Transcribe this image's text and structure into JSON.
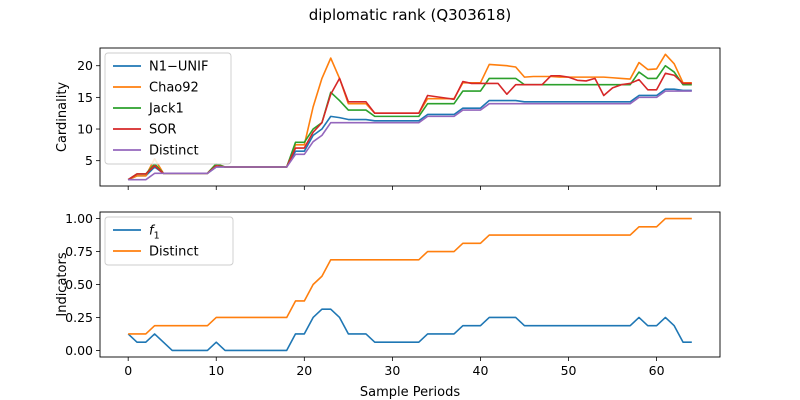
{
  "figure_title": "diplomatic rank (Q303618)",
  "chart_data": [
    {
      "type": "line",
      "title": "",
      "xlabel": "",
      "ylabel": "Cardinality",
      "xlim": [
        -3.2,
        67.2
      ],
      "ylim": [
        1.0,
        22.8
      ],
      "xticks": [
        0,
        10,
        20,
        30,
        40,
        50,
        60
      ],
      "yticks": [
        5,
        10,
        15,
        20
      ],
      "show_xtick_labels": false,
      "legend_position": "upper left",
      "grid": false,
      "x": [
        0,
        1,
        2,
        3,
        4,
        5,
        6,
        7,
        8,
        9,
        10,
        11,
        12,
        13,
        14,
        15,
        16,
        17,
        18,
        19,
        20,
        21,
        22,
        23,
        24,
        25,
        26,
        27,
        28,
        29,
        30,
        31,
        32,
        33,
        34,
        35,
        36,
        37,
        38,
        39,
        40,
        41,
        42,
        43,
        44,
        45,
        46,
        47,
        48,
        49,
        50,
        51,
        52,
        53,
        54,
        55,
        56,
        57,
        58,
        59,
        60,
        61,
        62,
        63,
        64
      ],
      "series": [
        {
          "name": "N1−UNIF",
          "color": "#1f77b4",
          "values": [
            2,
            2.6,
            2.6,
            4,
            3,
            3,
            3,
            3,
            3,
            3,
            4,
            4,
            4,
            4,
            4,
            4,
            4,
            4,
            4,
            6.5,
            6.5,
            9,
            10,
            12,
            11.8,
            11.5,
            11.5,
            11.5,
            11.3,
            11.3,
            11.3,
            11.3,
            11.3,
            11.3,
            12.3,
            12.3,
            12.3,
            12.3,
            13.3,
            13.3,
            13.3,
            14.5,
            14.5,
            14.5,
            14.5,
            14.3,
            14.3,
            14.3,
            14.3,
            14.3,
            14.3,
            14.3,
            14.3,
            14.3,
            14.3,
            14.3,
            14.3,
            14.3,
            15.3,
            15.3,
            15.3,
            16.3,
            16.3,
            16.1,
            16.1
          ]
        },
        {
          "name": "Chao92",
          "color": "#ff7f0e",
          "values": [
            2,
            2.6,
            2.6,
            5.3,
            3,
            3,
            3,
            3,
            3,
            3,
            4.5,
            4,
            4,
            4,
            4,
            4,
            4,
            4,
            4,
            7.5,
            7.5,
            13.5,
            18,
            21.2,
            18,
            14,
            14,
            14,
            12.5,
            12.5,
            12.5,
            12.5,
            12.5,
            12.5,
            14.8,
            14.8,
            14.8,
            14.8,
            17.3,
            17.3,
            17.3,
            20.2,
            20.1,
            20,
            19.8,
            18.2,
            18.3,
            18.3,
            18.3,
            18.2,
            18.2,
            18.2,
            18.2,
            18.2,
            18.2,
            18.1,
            18,
            17.9,
            20.5,
            19.4,
            19.5,
            21.8,
            20.3,
            17.3,
            17.3
          ]
        },
        {
          "name": "Jack1",
          "color": "#2ca02c",
          "values": [
            2,
            2.9,
            2.9,
            4.5,
            3,
            3,
            3,
            3,
            3,
            3,
            4.5,
            4,
            4,
            4,
            4,
            4,
            4,
            4,
            4,
            7.9,
            7.9,
            10,
            11,
            15.8,
            14.5,
            13,
            13,
            13,
            12,
            12,
            12,
            12,
            12,
            12,
            14,
            14,
            14,
            14,
            16,
            16,
            16,
            18,
            18,
            18,
            18,
            17,
            17,
            17,
            17,
            17,
            17,
            17,
            17,
            17,
            17,
            17,
            17,
            17,
            19,
            18,
            18,
            20,
            19,
            17,
            17
          ]
        },
        {
          "name": "SOR",
          "color": "#d62728",
          "values": [
            2,
            2.9,
            2.9,
            4.2,
            3,
            3,
            3,
            3,
            3,
            3,
            4.2,
            4,
            4,
            4,
            4,
            4,
            4,
            4,
            4,
            7,
            7,
            9.5,
            11,
            15.5,
            18,
            14.3,
            14.3,
            14.3,
            12.5,
            12.5,
            12.5,
            12.5,
            12.5,
            12.5,
            15.3,
            15.1,
            14.9,
            14.7,
            17.5,
            17.2,
            17.2,
            17.2,
            17.2,
            15.5,
            17,
            17,
            17,
            17,
            18.4,
            18.4,
            18.2,
            17.7,
            17.6,
            18,
            15.3,
            16.5,
            17,
            17.2,
            17.8,
            16.2,
            16.2,
            18.8,
            18.5,
            17.2,
            17.2
          ]
        },
        {
          "name": "Distinct",
          "color": "#9467bd",
          "values": [
            2,
            2,
            2,
            3,
            3,
            3,
            3,
            3,
            3,
            3,
            4,
            4,
            4,
            4,
            4,
            4,
            4,
            4,
            4,
            6,
            6,
            8,
            9,
            11,
            11,
            11,
            11,
            11,
            11,
            11,
            11,
            11,
            11,
            11,
            12,
            12,
            12,
            12,
            13,
            13,
            13,
            14,
            14,
            14,
            14,
            14,
            14,
            14,
            14,
            14,
            14,
            14,
            14,
            14,
            14,
            14,
            14,
            14,
            15,
            15,
            15,
            16,
            16,
            16,
            16
          ]
        }
      ]
    },
    {
      "type": "line",
      "title": "",
      "xlabel": "Sample Periods",
      "ylabel": "Indicators",
      "xlim": [
        -3.2,
        67.2
      ],
      "ylim": [
        -0.05,
        1.05
      ],
      "xticks": [
        0,
        10,
        20,
        30,
        40,
        50,
        60
      ],
      "yticks": [
        0.0,
        0.25,
        0.5,
        0.75,
        1.0
      ],
      "ytick_labels": [
        "0.00",
        "0.25",
        "0.50",
        "0.75",
        "1.00"
      ],
      "show_xtick_labels": true,
      "legend_position": "upper left",
      "grid": false,
      "x": [
        0,
        1,
        2,
        3,
        4,
        5,
        6,
        7,
        8,
        9,
        10,
        11,
        12,
        13,
        14,
        15,
        16,
        17,
        18,
        19,
        20,
        21,
        22,
        23,
        24,
        25,
        26,
        27,
        28,
        29,
        30,
        31,
        32,
        33,
        34,
        35,
        36,
        37,
        38,
        39,
        40,
        41,
        42,
        43,
        44,
        45,
        46,
        47,
        48,
        49,
        50,
        51,
        52,
        53,
        54,
        55,
        56,
        57,
        58,
        59,
        60,
        61,
        62,
        63,
        64
      ],
      "series": [
        {
          "name": "f1",
          "name_main": "f",
          "name_sub": "1",
          "color": "#1f77b4",
          "values": [
            0.125,
            0.0625,
            0.0625,
            0.125,
            0.0625,
            0,
            0,
            0,
            0,
            0,
            0.0625,
            0,
            0,
            0,
            0,
            0,
            0,
            0,
            0,
            0.125,
            0.125,
            0.25,
            0.3125,
            0.3125,
            0.25,
            0.125,
            0.125,
            0.125,
            0.0625,
            0.0625,
            0.0625,
            0.0625,
            0.0625,
            0.0625,
            0.125,
            0.125,
            0.125,
            0.125,
            0.1875,
            0.1875,
            0.1875,
            0.25,
            0.25,
            0.25,
            0.25,
            0.1875,
            0.1875,
            0.1875,
            0.1875,
            0.1875,
            0.1875,
            0.1875,
            0.1875,
            0.1875,
            0.1875,
            0.1875,
            0.1875,
            0.1875,
            0.25,
            0.1875,
            0.1875,
            0.25,
            0.1875,
            0.0625,
            0.0625
          ]
        },
        {
          "name": "Distinct",
          "color": "#ff7f0e",
          "values": [
            0.125,
            0.125,
            0.125,
            0.1875,
            0.1875,
            0.1875,
            0.1875,
            0.1875,
            0.1875,
            0.1875,
            0.25,
            0.25,
            0.25,
            0.25,
            0.25,
            0.25,
            0.25,
            0.25,
            0.25,
            0.375,
            0.375,
            0.5,
            0.5625,
            0.6875,
            0.6875,
            0.6875,
            0.6875,
            0.6875,
            0.6875,
            0.6875,
            0.6875,
            0.6875,
            0.6875,
            0.6875,
            0.75,
            0.75,
            0.75,
            0.75,
            0.8125,
            0.8125,
            0.8125,
            0.875,
            0.875,
            0.875,
            0.875,
            0.875,
            0.875,
            0.875,
            0.875,
            0.875,
            0.875,
            0.875,
            0.875,
            0.875,
            0.875,
            0.875,
            0.875,
            0.875,
            0.9375,
            0.9375,
            0.9375,
            1.0,
            1.0,
            1.0,
            1.0
          ]
        }
      ]
    }
  ]
}
